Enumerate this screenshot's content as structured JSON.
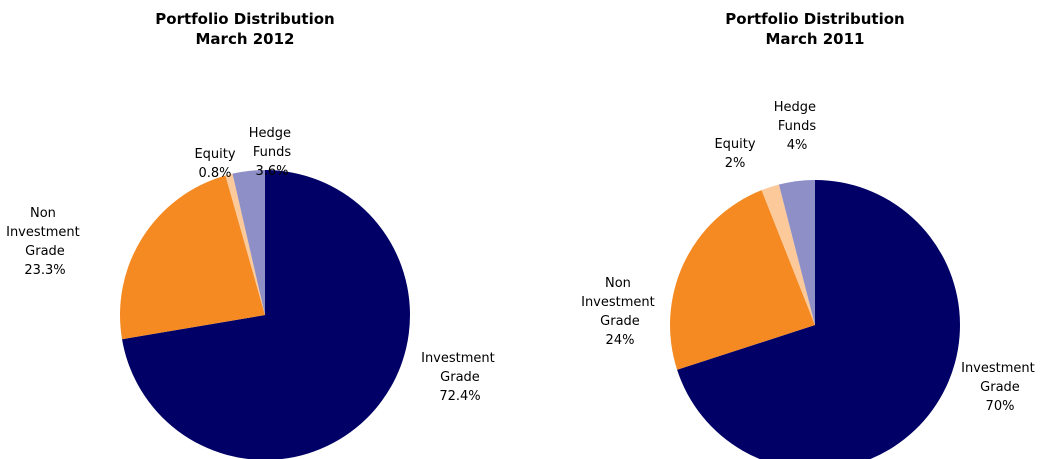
{
  "chart_data": [
    {
      "type": "pie",
      "title": "Portfolio Distribution",
      "subtitle": "March 2012",
      "categories": [
        "Investment Grade",
        "Non Investment Grade",
        "Equity",
        "Hedge Funds"
      ],
      "values": [
        72.4,
        23.3,
        0.8,
        3.6
      ],
      "value_labels": [
        "72.4%",
        "23.3%",
        "0.8%",
        "3.6%"
      ],
      "colors": [
        "#000066",
        "#f58a22",
        "#fbc99a",
        "#8e8fc6"
      ]
    },
    {
      "type": "pie",
      "title": "Portfolio Distribution",
      "subtitle": "March 2011",
      "categories": [
        "Investment Grade",
        "Non Investment Grade",
        "Equity",
        "Hedge Funds"
      ],
      "values": [
        70,
        24,
        2,
        4
      ],
      "value_labels": [
        "70%",
        "24%",
        "2%",
        "4%"
      ],
      "colors": [
        "#000066",
        "#f58a22",
        "#fbc99a",
        "#8e8fc6"
      ]
    }
  ]
}
